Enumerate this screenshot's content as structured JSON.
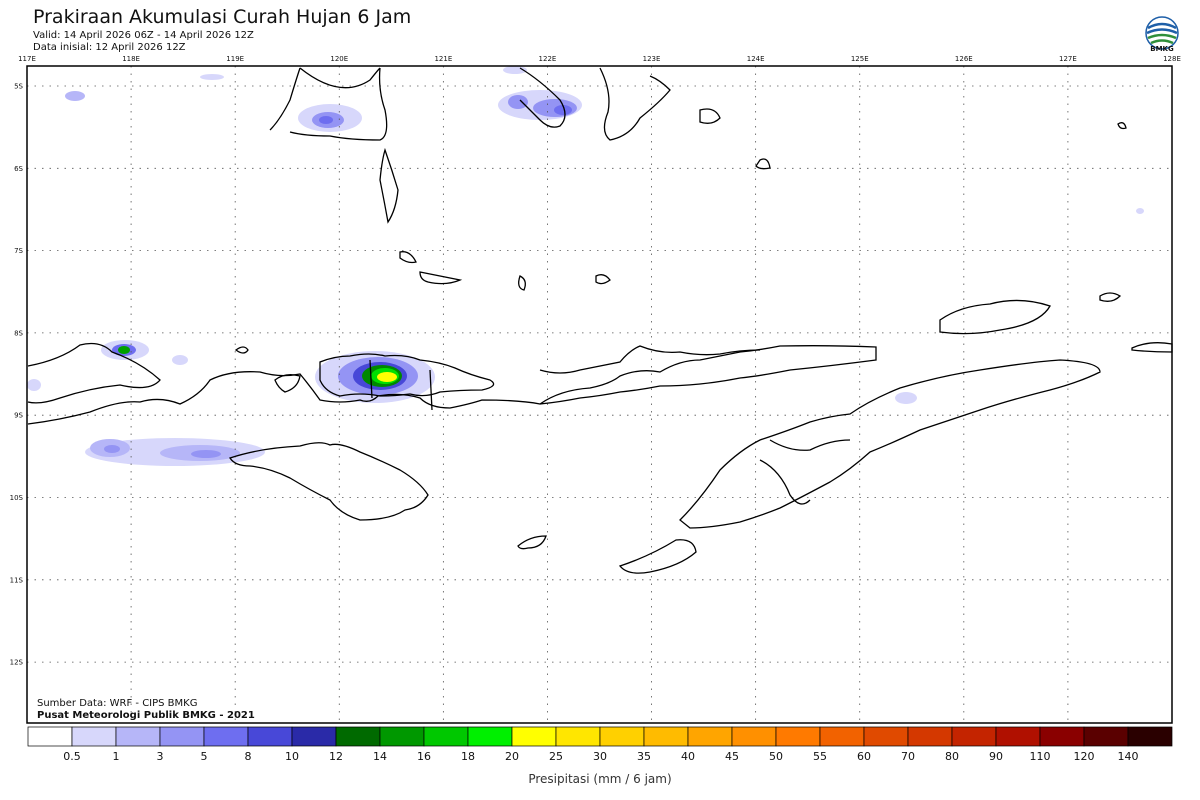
{
  "header": {
    "title": "Prakiraan Akumulasi Curah Hujan 6 Jam",
    "valid": "Valid: 14 April 2026 06Z - 14 April 2026 12Z",
    "initial": "Data inisial: 12 April 2026 12Z"
  },
  "logo": {
    "text": "BMKG",
    "icon": "bmkg-logo-icon"
  },
  "map": {
    "lon_labels": [
      "117E",
      "118E",
      "119E",
      "120E",
      "121E",
      "122E",
      "123E",
      "124E",
      "125E",
      "126E",
      "127E",
      "128E"
    ],
    "lat_labels": [
      "5S",
      "6S",
      "7S",
      "8S",
      "9S",
      "10S",
      "11S",
      "12S"
    ],
    "grid": true,
    "colors": {
      "land_outline": "#000000",
      "background": "#ffffff"
    }
  },
  "credits": {
    "source": "Sumber Data: WRF - CIPS BMKG",
    "center": "Pusat Meteorologi Publik BMKG - 2021"
  },
  "colorbar": {
    "labels": [
      "0.5",
      "1",
      "3",
      "5",
      "8",
      "10",
      "12",
      "14",
      "16",
      "18",
      "20",
      "25",
      "30",
      "35",
      "40",
      "45",
      "50",
      "55",
      "60",
      "70",
      "80",
      "90",
      "110",
      "120",
      "140"
    ],
    "colors": [
      "#ffffff",
      "#d7d7fb",
      "#b6b6f8",
      "#9494f4",
      "#6e6ef0",
      "#4848d8",
      "#2a2aa8",
      "#006a00",
      "#009800",
      "#00c800",
      "#00f000",
      "#ffff00",
      "#ffe600",
      "#ffd000",
      "#ffbb00",
      "#ffa500",
      "#ff9000",
      "#ff7a00",
      "#f26200",
      "#e04a00",
      "#d43800",
      "#c42400",
      "#b01000",
      "#8a0000",
      "#5a0000",
      "#2a0000"
    ],
    "xlabel": "Presipitasi (mm / 6 jam)"
  }
}
